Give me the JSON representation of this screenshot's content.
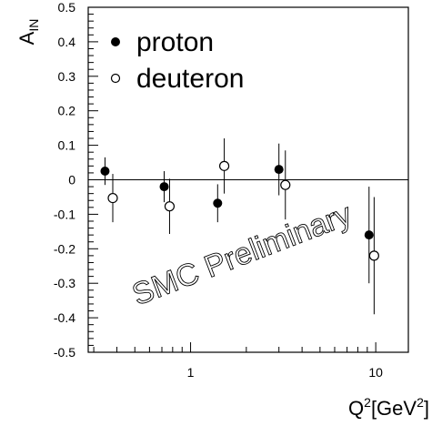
{
  "chart_data": {
    "type": "scatter",
    "x_scale": "log",
    "xlim": [
      0.28,
      15
    ],
    "ylim": [
      -0.5,
      0.5
    ],
    "zero_line": true,
    "grid": false,
    "xticks_labeled": [
      {
        "value": 1,
        "label": "1"
      },
      {
        "value": 10,
        "label": "10"
      }
    ],
    "yticks": [
      {
        "value": 0.5,
        "label": "0.5"
      },
      {
        "value": 0.4,
        "label": "0.4"
      },
      {
        "value": 0.3,
        "label": "0.3"
      },
      {
        "value": 0.2,
        "label": "0.2"
      },
      {
        "value": 0.1,
        "label": "0.1"
      },
      {
        "value": 0,
        "label": "0"
      },
      {
        "value": -0.1,
        "label": "-0.1"
      },
      {
        "value": -0.2,
        "label": "-0.2"
      },
      {
        "value": -0.3,
        "label": "-0.3"
      },
      {
        "value": -0.4,
        "label": "-0.4"
      },
      {
        "value": -0.5,
        "label": "-0.5"
      }
    ],
    "ylabel": {
      "main": "A",
      "sub": "IN"
    },
    "xlabel": {
      "main": "Q",
      "sup": "2",
      "rest": "[GeV",
      "sup2": "2",
      "end": "]"
    },
    "legend_position": "top-left",
    "watermark": "SMC Preliminary",
    "series": [
      {
        "name": "proton",
        "marker": "filled-circle",
        "points": [
          {
            "x": 0.345,
            "y": 0.025,
            "err": 0.04
          },
          {
            "x": 0.72,
            "y": -0.02,
            "err": 0.045
          },
          {
            "x": 1.4,
            "y": -0.068,
            "err": 0.055
          },
          {
            "x": 3.0,
            "y": 0.03,
            "err": 0.075
          },
          {
            "x": 9.2,
            "y": -0.16,
            "err": 0.14
          }
        ]
      },
      {
        "name": "deuteron",
        "marker": "open-circle",
        "points": [
          {
            "x": 0.38,
            "y": -0.053,
            "err": 0.07
          },
          {
            "x": 0.77,
            "y": -0.077,
            "err": 0.08
          },
          {
            "x": 1.52,
            "y": 0.04,
            "err": 0.08
          },
          {
            "x": 3.25,
            "y": -0.015,
            "err": 0.1
          },
          {
            "x": 9.8,
            "y": -0.22,
            "err": 0.17
          }
        ]
      }
    ]
  }
}
